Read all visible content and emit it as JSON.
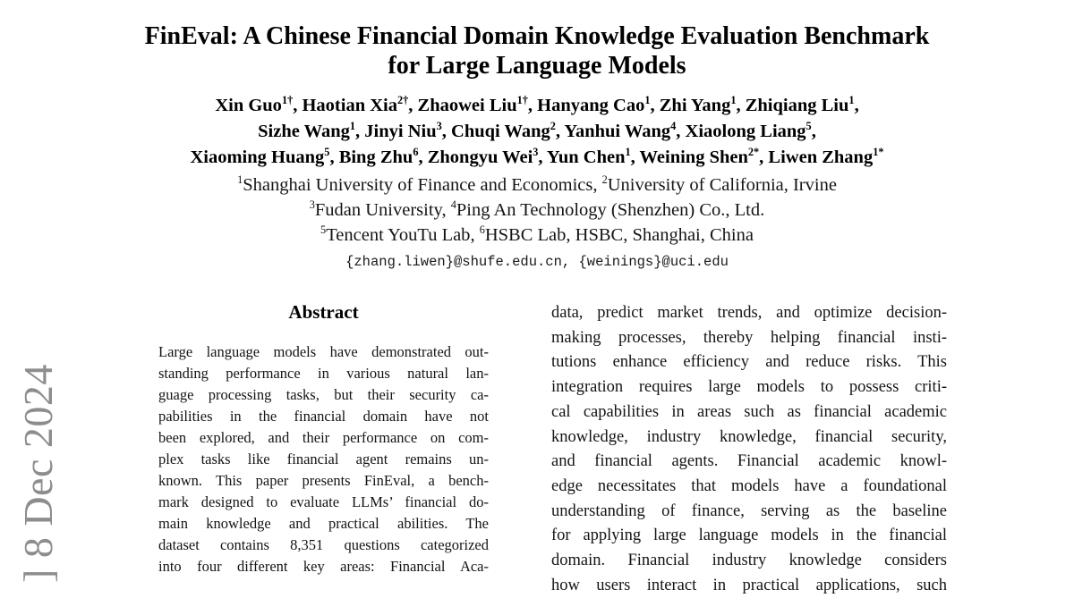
{
  "stamp": {
    "text": "] 8 Dec 2024",
    "color": "#8d8d8d"
  },
  "header": {
    "title_line1": "FinEval: A Chinese Financial Domain Knowledge Evaluation Benchmark",
    "title_line2": "for Large Language Models",
    "authors": [
      {
        "segs": [
          {
            "name": "Xin Guo",
            "sup": "1†",
            "sep": ", "
          },
          {
            "name": "Haotian Xia",
            "sup": "2†",
            "sep": ", "
          },
          {
            "name": "Zhaowei Liu",
            "sup": "1†",
            "sep": ", "
          },
          {
            "name": "Hanyang Cao",
            "sup": "1",
            "sep": ", "
          },
          {
            "name": "Zhi Yang",
            "sup": "1",
            "sep": ", "
          },
          {
            "name": "Zhiqiang Liu",
            "sup": "1",
            "sep": ","
          }
        ]
      },
      {
        "segs": [
          {
            "name": "Sizhe Wang",
            "sup": "1",
            "sep": ", "
          },
          {
            "name": "Jinyi Niu",
            "sup": "3",
            "sep": ", "
          },
          {
            "name": "Chuqi Wang",
            "sup": "2",
            "sep": ", "
          },
          {
            "name": "Yanhui Wang",
            "sup": "4",
            "sep": ", "
          },
          {
            "name": "Xiaolong Liang",
            "sup": "5",
            "sep": ","
          }
        ]
      },
      {
        "segs": [
          {
            "name": "Xiaoming Huang",
            "sup": "5",
            "sep": ", "
          },
          {
            "name": "Bing Zhu",
            "sup": "6",
            "sep": ", "
          },
          {
            "name": "Zhongyu Wei",
            "sup": "3",
            "sep": ", "
          },
          {
            "name": "Yun Chen",
            "sup": "1",
            "sep": ", "
          },
          {
            "name": "Weining Shen",
            "sup": "2*",
            "sep": ", "
          },
          {
            "name": "Liwen Zhang",
            "sup": "1*",
            "sep": ""
          }
        ]
      }
    ],
    "affiliations": [
      {
        "segs": [
          {
            "sup": "1",
            "name": "Shanghai University of Finance and Economics",
            "sep": ", "
          },
          {
            "sup": "2",
            "name": "University of California, Irvine",
            "sep": ""
          }
        ]
      },
      {
        "segs": [
          {
            "sup": "3",
            "name": "Fudan University",
            "sep": ", "
          },
          {
            "sup": "4",
            "name": "Ping An Technology (Shenzhen) Co., Ltd.",
            "sep": ""
          }
        ]
      },
      {
        "segs": [
          {
            "sup": "5",
            "name": "Tencent YouTu Lab",
            "sep": ", "
          },
          {
            "sup": "6",
            "name": "HSBC Lab, HSBC, Shanghai, China",
            "sep": ""
          }
        ]
      }
    ],
    "emails": "{zhang.liwen}@shufe.edu.cn, {weinings}@uci.edu"
  },
  "abstract": {
    "heading": "Abstract",
    "lines": [
      "Large language models have demonstrated out-",
      "standing performance in various natural lan-",
      "guage processing tasks, but their security ca-",
      "pabilities in the financial domain have not",
      "been explored, and their performance on com-",
      "plex tasks like financial agent remains un-",
      "known. This paper presents FinEval, a bench-",
      "mark designed to evaluate LLMs’ financial do-",
      "main knowledge and practical abilities. The",
      "dataset contains 8,351 questions categorized",
      "into four different key areas: Financial Aca-"
    ]
  },
  "intro": {
    "lines": [
      "data, predict market trends, and optimize decision-",
      "making processes, thereby helping financial insti-",
      "tutions enhance efficiency and reduce risks. This",
      "integration requires large models to possess criti-",
      "cal capabilities in areas such as financial academic",
      "knowledge, industry knowledge, financial security,",
      "and financial agents. Financial academic knowl-",
      "edge necessitates that models have a foundational",
      "understanding of finance, serving as the baseline",
      "for applying large language models in the financial",
      "domain. Financial industry knowledge considers",
      "how users interact in practical applications, such"
    ]
  }
}
